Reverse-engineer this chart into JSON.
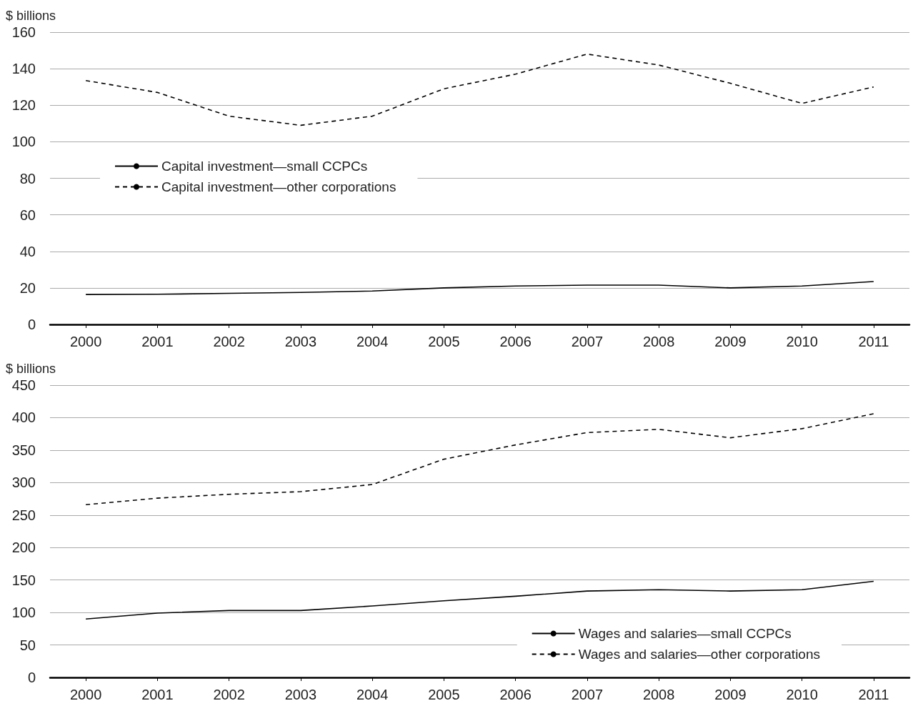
{
  "chart_data": [
    {
      "type": "line",
      "ylabel": "$ billions",
      "categories": [
        "2000",
        "2001",
        "2002",
        "2003",
        "2004",
        "2005",
        "2006",
        "2007",
        "2008",
        "2009",
        "2010",
        "2011"
      ],
      "ylim": [
        0,
        160
      ],
      "yticks": [
        0,
        20,
        40,
        60,
        80,
        100,
        120,
        140,
        160
      ],
      "grid": "y",
      "legend": "left",
      "marker": "none",
      "series": [
        {
          "name": "Capital investment—small CCPCs",
          "color": "#000000",
          "line_style": "solid",
          "values": [
            16.4,
            16.5,
            17,
            17.5,
            18.3,
            20,
            21,
            21.5,
            21.5,
            20,
            21,
            23.5
          ]
        },
        {
          "name": "Capital investment—other corporations",
          "color": "#000000",
          "line_style": "dashed",
          "values": [
            133.5,
            127,
            114,
            109,
            114,
            129,
            137,
            148,
            142,
            132,
            121,
            130
          ]
        }
      ]
    },
    {
      "type": "line",
      "ylabel": "$ billions",
      "categories": [
        "2000",
        "2001",
        "2002",
        "2003",
        "2004",
        "2005",
        "2006",
        "2007",
        "2008",
        "2009",
        "2010",
        "2011"
      ],
      "ylim": [
        0,
        450
      ],
      "yticks": [
        0,
        50,
        100,
        150,
        200,
        250,
        300,
        350,
        400,
        450
      ],
      "grid": "y",
      "legend": "bottom right",
      "marker": "none",
      "series": [
        {
          "name": "Wages and salaries—small CCPCs",
          "color": "#000000",
          "line_style": "solid",
          "values": [
            90,
            99,
            103,
            103,
            110,
            118,
            125,
            133,
            135,
            133,
            135,
            148
          ]
        },
        {
          "name": "Wages and salaries—other corporations",
          "color": "#000000",
          "line_style": "dashed",
          "values": [
            266,
            276,
            282,
            286,
            297,
            336,
            358,
            377,
            382,
            369,
            383,
            406
          ]
        }
      ]
    }
  ]
}
